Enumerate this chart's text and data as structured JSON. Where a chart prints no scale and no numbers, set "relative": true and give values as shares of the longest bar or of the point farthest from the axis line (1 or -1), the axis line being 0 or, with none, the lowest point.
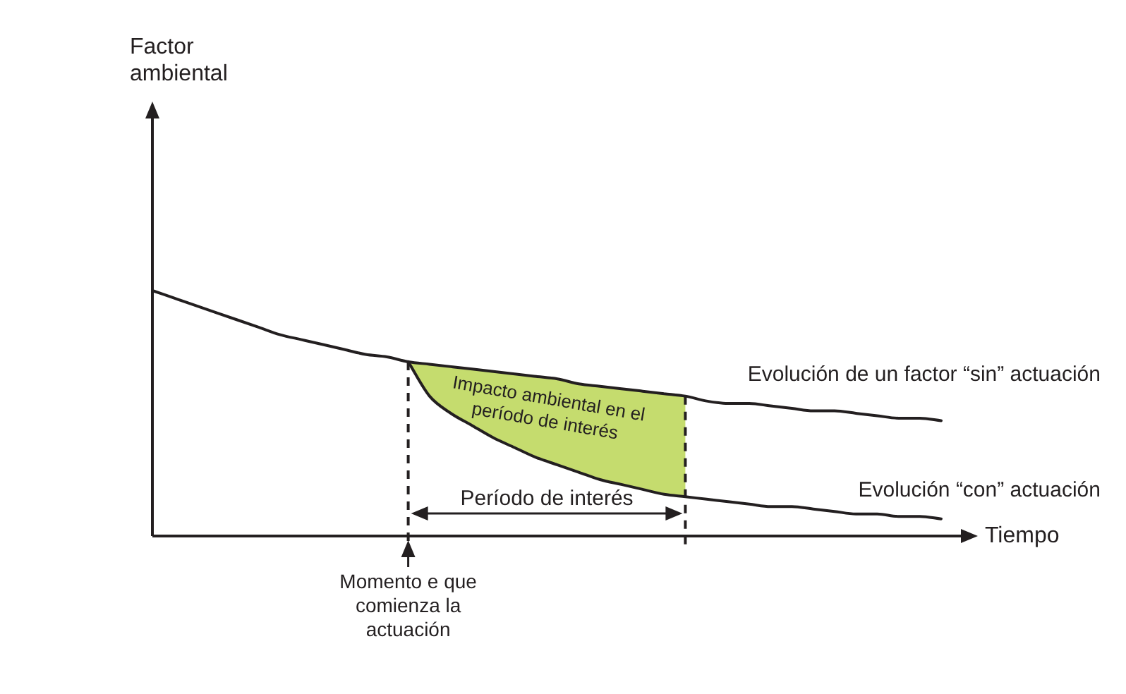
{
  "chart_data": {
    "type": "line",
    "relative": true,
    "xlabel": "Tiempo",
    "marker": "none",
    "line_style": "solid",
    "grid": false,
    "legend": false,
    "categories": [
      null,
      null,
      null,
      null,
      null,
      null,
      null,
      null,
      null,
      null,
      null,
      null,
      null,
      null,
      null,
      null,
      null,
      null,
      null,
      null,
      null,
      null,
      null,
      null,
      null,
      null,
      null,
      null,
      null,
      null,
      null,
      null,
      null,
      null,
      null,
      null,
      null,
      null
    ],
    "series": [
      {
        "name": "Evolución de un factor “sin” actuación",
        "color": "#231f20",
        "values": [
          1.0,
          0.97,
          0.94,
          0.91,
          0.88,
          0.85,
          0.82,
          0.8,
          0.78,
          0.76,
          0.74,
          0.73,
          0.71,
          0.7,
          0.69,
          0.68,
          0.67,
          0.66,
          0.65,
          0.64,
          0.62,
          0.61,
          0.6,
          0.59,
          0.58,
          0.57,
          0.55,
          0.54,
          0.54,
          0.53,
          0.52,
          0.51,
          0.51,
          0.5,
          0.49,
          0.48,
          0.48,
          0.47
        ]
      },
      {
        "name": "Evolución “con” actuación",
        "color": "#231f20",
        "values": [
          null,
          null,
          null,
          null,
          null,
          null,
          null,
          null,
          null,
          null,
          null,
          null,
          0.71,
          0.57,
          0.5,
          0.45,
          0.4,
          0.36,
          0.32,
          0.29,
          0.26,
          0.23,
          0.21,
          0.19,
          0.17,
          0.16,
          0.15,
          0.14,
          0.13,
          0.12,
          0.12,
          0.11,
          0.1,
          0.09,
          0.09,
          0.08,
          0.08,
          0.07
        ]
      }
    ],
    "annotations": [
      "Impacto ambiental en el período de interés",
      "Período de interés",
      "Momento e que comienza la actuación",
      "Factor ambiental"
    ]
  }
}
